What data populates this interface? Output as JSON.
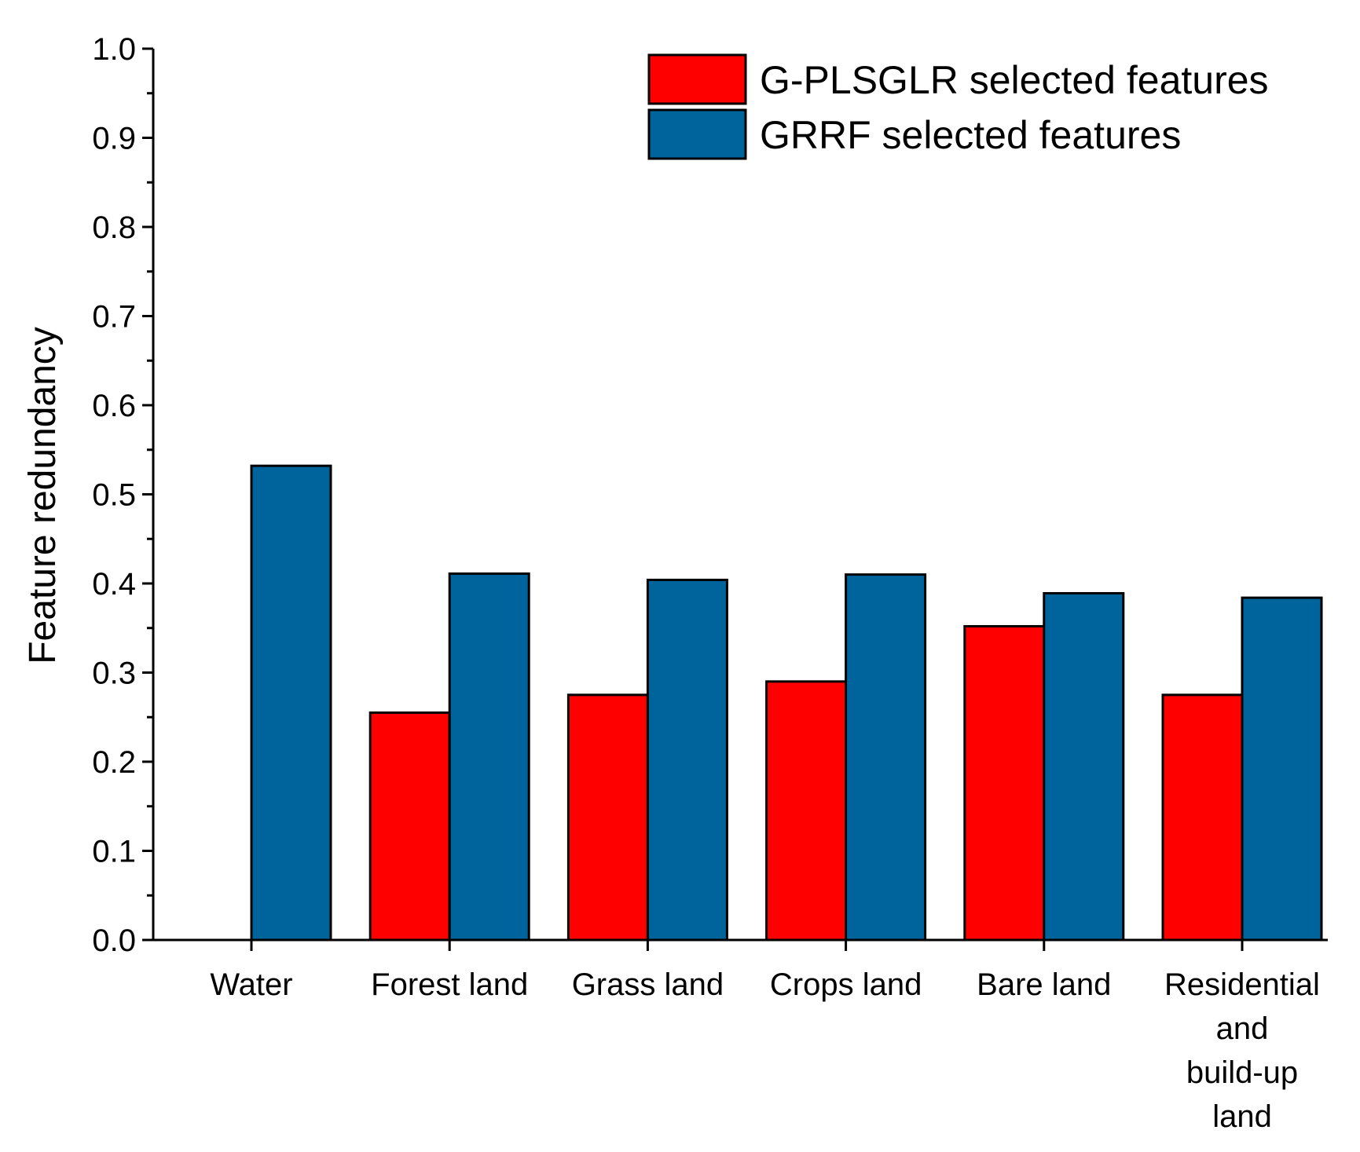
{
  "chart_data": {
    "type": "bar",
    "title": "",
    "xlabel": "",
    "ylabel": "Feature redundancy",
    "ylim": [
      0.0,
      1.0
    ],
    "yticks": [
      "0.0",
      "0.1",
      "0.2",
      "0.3",
      "0.4",
      "0.5",
      "0.6",
      "0.7",
      "0.8",
      "0.9",
      "1.0"
    ],
    "grid": false,
    "legend_position": "top-right",
    "categories": [
      [
        "Water"
      ],
      [
        "Forest land"
      ],
      [
        "Grass land"
      ],
      [
        "Crops land"
      ],
      [
        "Bare land"
      ],
      [
        "Residential",
        "and",
        "build-up",
        "land"
      ]
    ],
    "series": [
      {
        "name": "G-PLSGLR selected features",
        "color": "#ff0000",
        "values": [
          null,
          0.255,
          0.275,
          0.29,
          0.352,
          0.275
        ]
      },
      {
        "name": "GRRF selected features",
        "color": "#00649c",
        "values": [
          0.532,
          0.411,
          0.404,
          0.41,
          0.389,
          0.384
        ]
      }
    ]
  }
}
